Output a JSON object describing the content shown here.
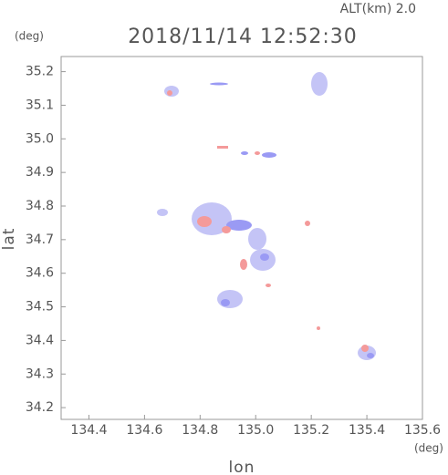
{
  "chart_data": {
    "type": "map",
    "subtitle": "ALT(km)  2.0",
    "title": "2018/11/14 12:52:30",
    "y_unit": "(deg)",
    "x_unit": "(deg)",
    "y_label": "lat",
    "x_label": "lon",
    "xlim": [
      134.3,
      135.6
    ],
    "xticks": [
      134.4,
      134.6,
      134.8,
      {
        "value": 135,
        "label": "135.0"
      },
      135.2,
      135.4,
      135.6
    ],
    "ylim": [
      34.165,
      35.245
    ],
    "yticks": [
      34.2,
      34.3,
      34.4,
      34.5,
      34.6,
      34.7,
      34.8,
      34.9,
      {
        "value": 35,
        "label": "35.0"
      },
      35.1,
      35.2
    ]
  }
}
